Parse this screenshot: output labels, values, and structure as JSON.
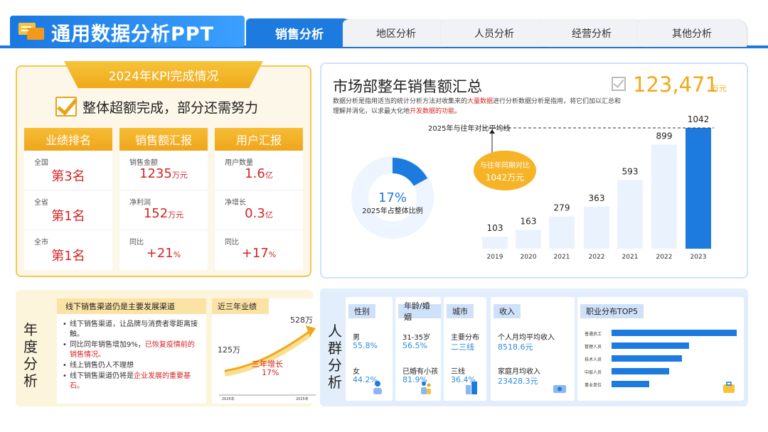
{
  "header": {
    "title": "通用数据分析PPT",
    "tabs": [
      "销售分析",
      "地区分析",
      "人员分析",
      "经营分析",
      "其他分析"
    ]
  },
  "kpi": {
    "ribbon": "2024年KPI完成情况",
    "subtitle": "整体超额完成，部分还需努力",
    "columns": [
      {
        "head": "业绩排名",
        "cells": [
          {
            "label": "全国",
            "value": "第3名",
            "unit": ""
          },
          {
            "label": "全省",
            "value": "第1名",
            "unit": ""
          },
          {
            "label": "全市",
            "value": "第1名",
            "unit": ""
          }
        ]
      },
      {
        "head": "销售额汇报",
        "cells": [
          {
            "label": "销售金额",
            "value": "1235",
            "unit": "万元"
          },
          {
            "label": "净利润",
            "value": "152",
            "unit": "万元"
          },
          {
            "label": "同比",
            "value": "+21",
            "unit": "%"
          }
        ]
      },
      {
        "head": "用户汇报",
        "cells": [
          {
            "label": "用户数量",
            "value": "1.6",
            "unit": "亿"
          },
          {
            "label": "净增长",
            "value": "0.3",
            "unit": "亿"
          },
          {
            "label": "同比",
            "value": "+17",
            "unit": "%"
          }
        ]
      }
    ]
  },
  "market": {
    "title": "市场部整年销售额汇总",
    "desc_a": "数据分析是指用适当的统计分析方法对收集来的",
    "desc_b": "大量数据",
    "desc_c": "进行分析数据分析是指用，将它们加以汇总和理解并消化，以求最大化地",
    "desc_d": "开发数据的功能",
    "desc_e": "。",
    "total": "123,471",
    "total_unit": "万元"
  },
  "chart_data": {
    "type": "bar",
    "categories": [
      "2019",
      "2020",
      "2021",
      "2022",
      "2021",
      "2022",
      "2023"
    ],
    "values": [
      103,
      163,
      279,
      363,
      593,
      899,
      1042
    ],
    "avg_line_label": "2025年与往年对比平均线",
    "bubble": [
      "与往年同期对比",
      "1042万元"
    ],
    "donut": {
      "percent": 17,
      "label": "17%",
      "caption": "2025年占整体比例"
    },
    "colors": {
      "bar": "#eaf3fd",
      "highlight": "#1d7be0",
      "bubble": "#f5b325"
    }
  },
  "annual": {
    "side": "年度分析",
    "card_title": "线下销售渠道仍是主要发展渠道",
    "items": [
      {
        "a": "线下销售渠道，让品牌与消费者零距离接触。",
        "b": "",
        "c": ""
      },
      {
        "a": "同比同年销售增加9%，",
        "b": "已恢复疫情前的销售情况。",
        "c": ""
      },
      {
        "a": "线上销售仍人不理想",
        "b": "",
        "c": ""
      },
      {
        "a": "线下销售渠道仍将是",
        "b": "企业发展的重要基石。",
        "c": ""
      }
    ],
    "trend_title": "近三年业绩",
    "trend_start": "125万",
    "trend_end": "528万",
    "trend_label": "三年增长",
    "trend_pct": "17%",
    "trend_x0": "2025年",
    "trend_x1": "2025年"
  },
  "people": {
    "side": "人群分析",
    "gender": {
      "head": "性别",
      "l1": "男",
      "v1": "55.8%",
      "l2": "女",
      "v2": "44.2%"
    },
    "age": {
      "head": "年龄/婚姻",
      "l1": "31-35岁",
      "v1": "56.5%",
      "l2": "已婚有小孩",
      "v2": "81.9%"
    },
    "city": {
      "head": "城市",
      "l1": "主要分布",
      "v1": "二三线",
      "l2": "三线",
      "v2": "36.4%"
    },
    "income": {
      "head": "收入",
      "l1": "个人月均平均收入",
      "v1": "8518.6元",
      "l2": "家庭月均收入",
      "v2": "23428.3元"
    },
    "jobs": {
      "head": "职业分布TOP5",
      "labels": [
        "普通员工",
        "管理人员",
        "技术人员",
        "中层人员",
        "事业单位"
      ],
      "values": [
        100,
        62,
        56,
        46,
        30
      ]
    }
  }
}
